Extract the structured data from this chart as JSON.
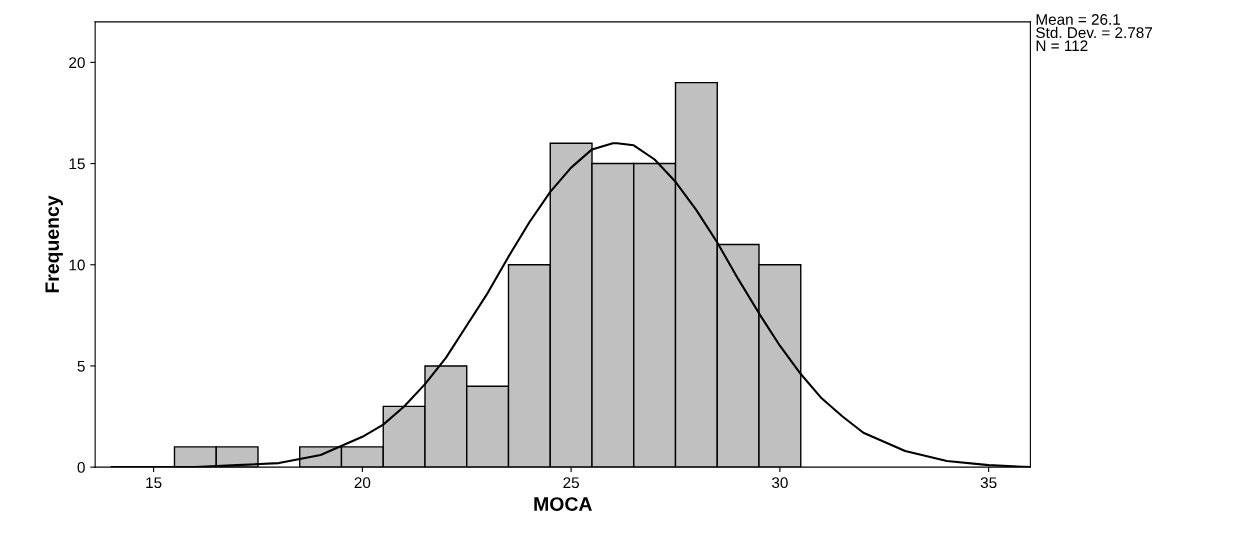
{
  "chart_data": {
    "type": "histogram",
    "xlabel": "MOCA",
    "ylabel": "Frequency",
    "bins": [
      15.5,
      16.5,
      17.5,
      18.5,
      19.5,
      20.5,
      21.5,
      22.5,
      23.5,
      24.5,
      25.5,
      26.5,
      27.5,
      28.5,
      29.5,
      30.5
    ],
    "values": [
      1,
      1,
      0,
      1,
      1,
      3,
      5,
      4,
      10,
      16,
      15,
      15,
      19,
      11,
      10
    ],
    "color": "#c0c0c0",
    "series": [
      {
        "type": "line",
        "color": "#000000",
        "x": [
          14,
          15,
          16,
          17,
          18,
          19,
          20,
          20.5,
          21,
          21.5,
          22,
          22.5,
          23,
          23.5,
          24,
          24.5,
          25,
          25.5,
          26,
          26.1,
          26.5,
          27,
          27.5,
          28,
          28.5,
          29,
          29.5,
          30,
          30.5,
          31,
          31.5,
          32,
          33,
          34,
          35,
          36
        ],
        "values": [
          0.0,
          0.0,
          0.0,
          0.1,
          0.2,
          0.6,
          1.5,
          2.1,
          3.0,
          4.1,
          5.4,
          7.0,
          8.6,
          10.4,
          12.1,
          13.6,
          14.8,
          15.7,
          16.0,
          16.0,
          15.9,
          15.2,
          14.1,
          12.7,
          11.1,
          9.3,
          7.6,
          6.0,
          4.6,
          3.4,
          2.5,
          1.7,
          0.8,
          0.3,
          0.1,
          0.0
        ]
      }
    ],
    "xlim": [
      13.6,
      36
    ],
    "ylim": [
      0,
      22
    ],
    "xticks": [
      15,
      20,
      25,
      30,
      35
    ],
    "yticks": [
      0,
      5,
      10,
      15,
      20
    ],
    "annotations": [
      "Mean = 26.1\nStd. Dev. = 2.787\nN = 112"
    ]
  }
}
